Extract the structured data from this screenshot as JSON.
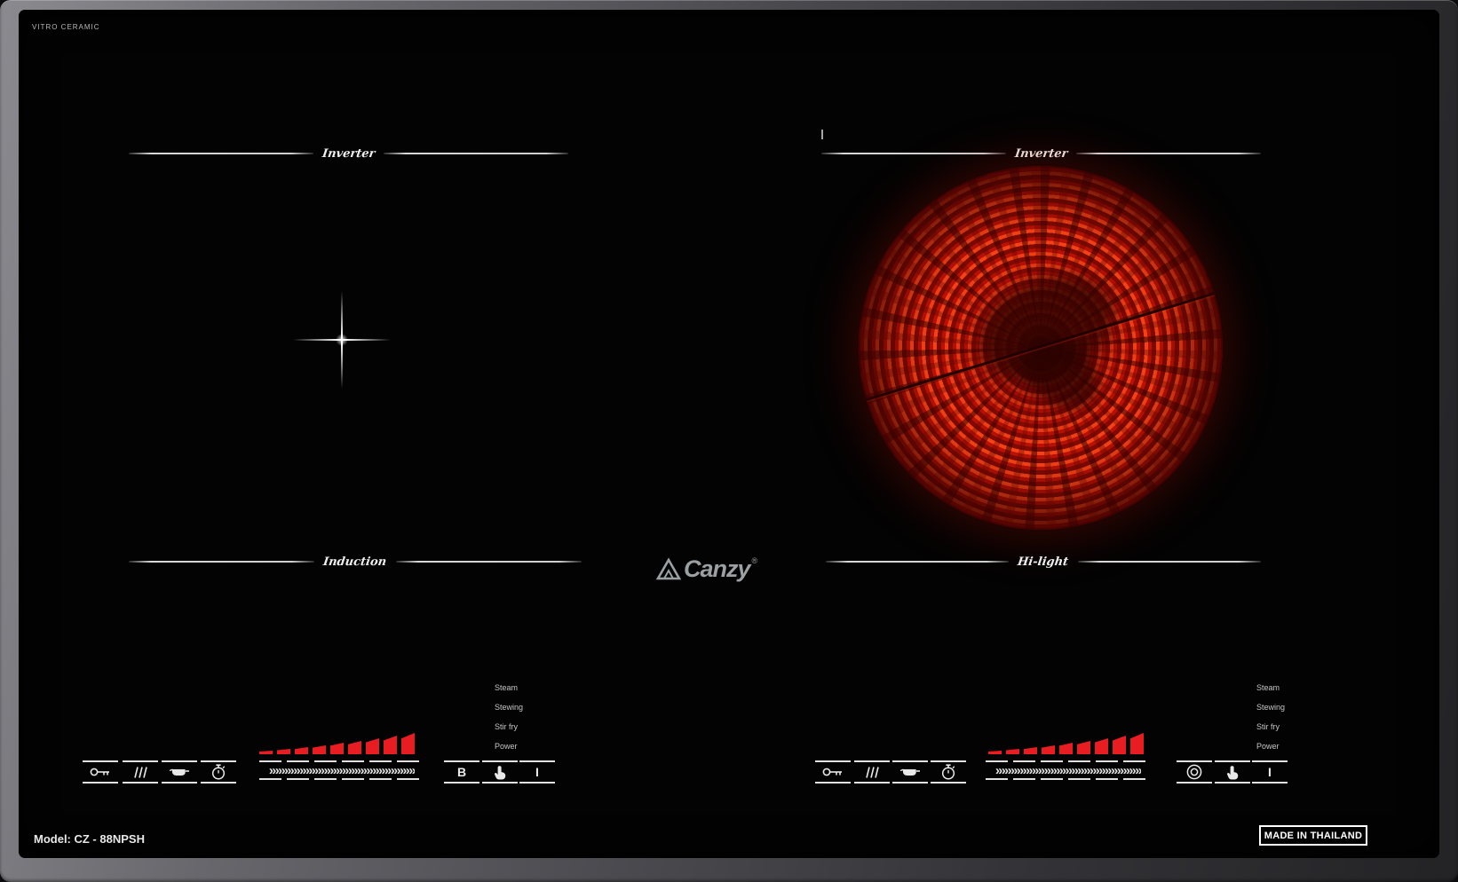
{
  "product": {
    "surface_label": "VITRO CERAMIC",
    "brand": "Canzy",
    "registered_mark": "®",
    "model": "Model: CZ - 88NPSH",
    "origin": "MADE IN THAILAND"
  },
  "zones": {
    "left": {
      "top_label": "Inverter",
      "bottom_label": "Induction",
      "type": "induction-zone"
    },
    "right": {
      "top_label": "Inverter",
      "bottom_label": "Hi-light",
      "type": "hilight-zone",
      "state": "heating"
    }
  },
  "controls": {
    "mode_labels": [
      "Steam",
      "Stewing",
      "Stir fry",
      "Power"
    ],
    "slider_chevrons": "»»»»»»»»»»»»»»»»»»»»»»»»",
    "power_bar_heights": [
      4,
      6,
      8,
      10,
      13,
      15,
      18,
      21,
      24
    ],
    "booster_label": "B",
    "power_label": "I",
    "icons": {
      "lock": "key-icon",
      "steam": "steam-lines-icon",
      "keep_warm": "pot-icon",
      "timer": "stopwatch-icon",
      "slider": "chevron-slider",
      "dual_zone": "double-circle-icon",
      "touch": "hand-icon"
    }
  },
  "colors": {
    "accent_red": "#e71d22",
    "burner_glow": "#dd2010",
    "icon_color": "#e6e6e6",
    "frame_gray": "#6f6f73"
  }
}
